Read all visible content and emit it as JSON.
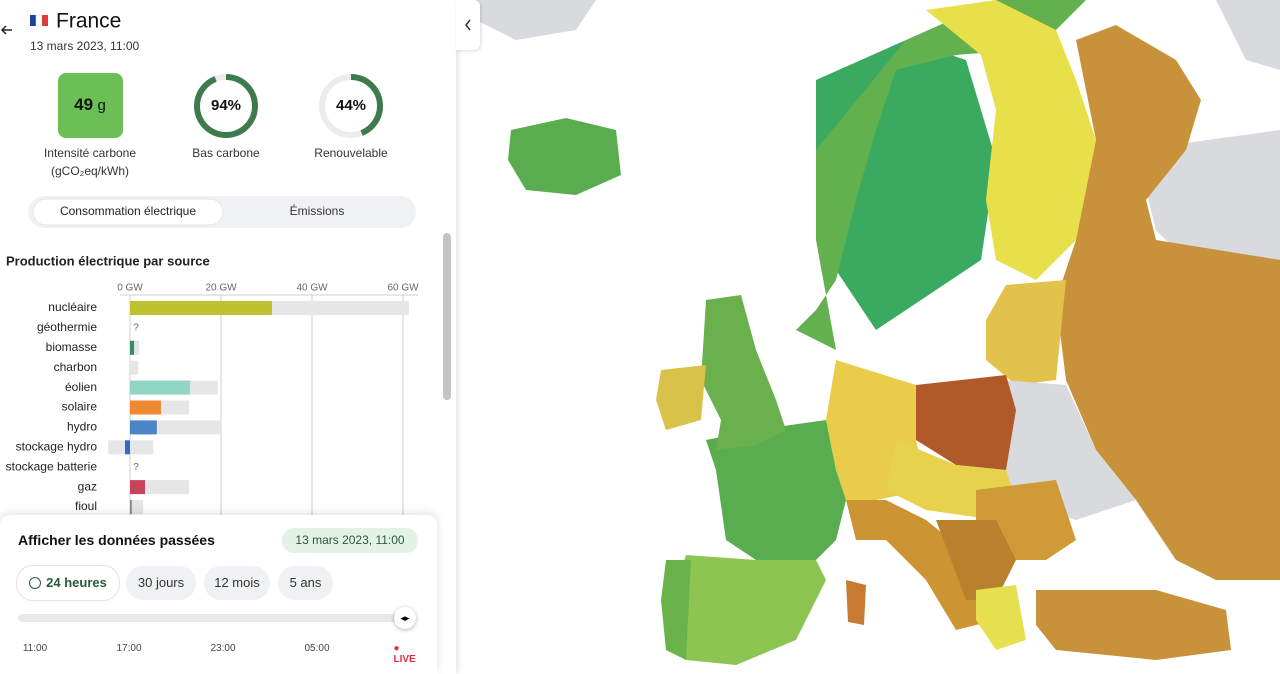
{
  "header": {
    "country": "France",
    "datetime": "13 mars 2023, 11:00"
  },
  "metrics": [
    {
      "value": 49,
      "unit": "g",
      "label": "Intensité carbone",
      "sublabel": "(gCO₂eq/kWh)",
      "color": "#6cbf55"
    },
    {
      "value": 94,
      "value_label": "94%",
      "label": "Bas carbone",
      "color": "#3f7a4c"
    },
    {
      "value": 44,
      "value_label": "44%",
      "label": "Renouvelable",
      "color": "#3f7a4c"
    }
  ],
  "tabs": [
    "Consommation électrique",
    "Émissions"
  ],
  "chart_data": {
    "type": "bar",
    "orientation": "horizontal",
    "title": "Production électrique par source",
    "categories": [
      "nucléaire",
      "géothermie",
      "biomasse",
      "charbon",
      "éolien",
      "solaire",
      "hydro",
      "stockage hydro",
      "stockage batterie",
      "gaz",
      "fioul"
    ],
    "values": [
      31.2,
      null,
      0.9,
      0,
      13.2,
      6.8,
      5.9,
      -1.1,
      null,
      3.3,
      0.4
    ],
    "capacity": [
      61.3,
      null,
      2,
      1.8,
      19.3,
      13,
      20.2,
      5.1,
      null,
      13,
      2.9
    ],
    "capacity_low": [
      0,
      null,
      0,
      0,
      0,
      0,
      0,
      -4.8,
      null,
      0,
      0
    ],
    "colors": [
      "#bfc22e",
      "#999999",
      "#3a8a6a",
      "#999999",
      "#8fd6c4",
      "#f08a32",
      "#4a86c6",
      "#2f6bc9",
      "#999999",
      "#c8435c",
      "#8a8a8a"
    ],
    "missing_label": "?",
    "xlim": [
      0,
      60
    ],
    "xticks": [
      {
        "value": 0,
        "label": "0 GW"
      },
      {
        "value": 20,
        "label": "20 GW"
      },
      {
        "value": 40,
        "label": "40 GW"
      },
      {
        "value": 60,
        "label": "60 GW"
      }
    ],
    "grid": true
  },
  "history": {
    "title": "Afficher les données passées",
    "datetime": "13 mars 2023, 11:00",
    "options": [
      "24 heures",
      "30 jours",
      "12 mois",
      "5 ans"
    ],
    "times": [
      "11:00",
      "17:00",
      "23:00",
      "05:00"
    ],
    "live": "LIVE"
  }
}
